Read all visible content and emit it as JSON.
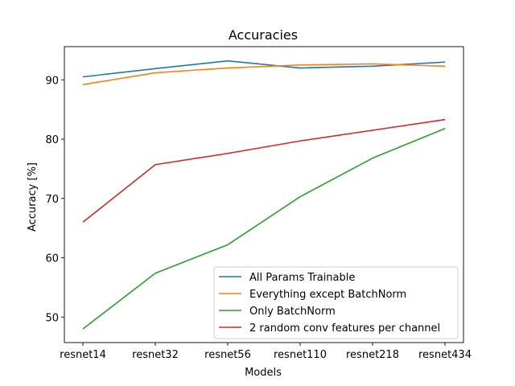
{
  "chart_data": {
    "type": "line",
    "title": "Accuracies",
    "xlabel": "Models",
    "ylabel": "Accuracy [%]",
    "categories": [
      "resnet14",
      "resnet32",
      "resnet56",
      "resnet110",
      "resnet218",
      "resnet434"
    ],
    "ylim": [
      45.7,
      95.6
    ],
    "yticks": [
      50,
      60,
      70,
      80,
      90
    ],
    "grid": false,
    "legend_position": "lower-right",
    "series": [
      {
        "name": "All Params Trainable",
        "color": "#1f77b4",
        "values": [
          90.5,
          91.9,
          93.2,
          92.0,
          92.3,
          93.0
        ]
      },
      {
        "name": "Everything except BatchNorm",
        "color": "#ff7f0e",
        "values": [
          89.2,
          91.2,
          92.0,
          92.5,
          92.7,
          92.3
        ]
      },
      {
        "name": "Only BatchNorm",
        "color": "#2ca02c",
        "values": [
          48.0,
          57.4,
          62.2,
          70.3,
          76.8,
          81.8
        ]
      },
      {
        "name": "2 random conv features per channel",
        "color": "#d62728",
        "values": [
          66.0,
          75.7,
          77.6,
          79.7,
          81.5,
          83.3
        ]
      }
    ]
  }
}
